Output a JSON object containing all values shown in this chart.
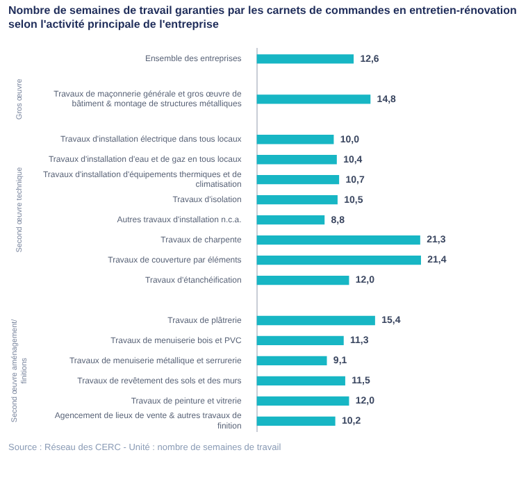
{
  "chart_data": {
    "type": "bar",
    "orientation": "horizontal",
    "title": "Nombre de semaines de travail garanties par les carnets de commandes en entretien-rénovation selon l'activité principale de l'entreprise",
    "categories": [
      "Ensemble des entreprises",
      null,
      "Travaux de maçonnerie générale et gros œuvre de bâtiment & montage de structures métalliques",
      null,
      "Travaux d'installation électrique dans tous locaux",
      "Travaux d'installation d'eau et de gaz en tous locaux",
      "Travaux d'installation d'équipements thermiques et de climatisation",
      "Travaux d'isolation",
      "Autres travaux d'installation n.c.a.",
      "Travaux de charpente",
      "Travaux de couverture par éléments",
      "Travaux d'étanchéification",
      null,
      "Travaux de plâtrerie",
      "Travaux de menuiserie bois et PVC",
      "Travaux de menuiserie métallique et serrurerie",
      "Travaux de revêtement des sols et des murs",
      "Travaux de peinture et vitrerie",
      "Agencement de lieux de vente & autres travaux de finition"
    ],
    "values": [
      12.6,
      null,
      14.8,
      null,
      10.0,
      10.4,
      10.7,
      10.5,
      8.8,
      21.3,
      21.4,
      12.0,
      null,
      15.4,
      11.3,
      9.1,
      11.5,
      12.0,
      10.2
    ],
    "color": "#17b6c4",
    "value_labels": [
      "12,6",
      null,
      "14,8",
      null,
      "10,0",
      "10,4",
      "10,7",
      "10,5",
      "8,8",
      "21,3",
      "21,4",
      "12,0",
      null,
      "15,4",
      "11,3",
      "9,1",
      "11,5",
      "12,0",
      "10,2"
    ],
    "annotations": [
      "Gros œuvre",
      "Second œuvre technique",
      "Second œuvre aménagement/ finitions",
      "Source : Réseau des CERC - Unité : nombre de semaines de travail"
    ]
  }
}
